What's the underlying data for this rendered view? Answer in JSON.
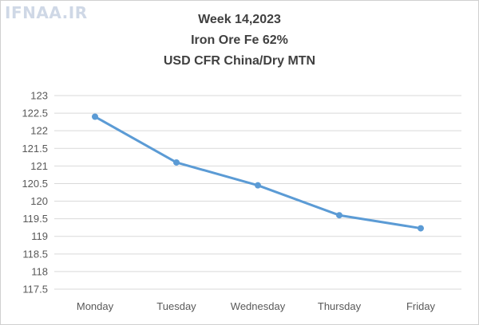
{
  "watermark": "IFNAA.IR",
  "chart_data": {
    "type": "line",
    "title": [
      "Week 14,2023",
      "Iron Ore Fe 62%",
      "USD CFR China/Dry MTN"
    ],
    "xlabel": "",
    "ylabel": "",
    "categories": [
      "Monday",
      "Tuesday",
      "Wednesday",
      "Thursday",
      "Friday"
    ],
    "series": [
      {
        "values": [
          122.4,
          121.1,
          120.45,
          119.6,
          119.23
        ]
      }
    ],
    "ylim": [
      117.5,
      123
    ],
    "yticks": [
      "117.5",
      "118",
      "118.5",
      "119",
      "119.5",
      "120",
      "120.5",
      "121",
      "121.5",
      "122",
      "122.5",
      "123"
    ],
    "grid": true,
    "legend": "none",
    "line_color": "#5b9bd5",
    "grid_color": "#d9d9d9"
  }
}
